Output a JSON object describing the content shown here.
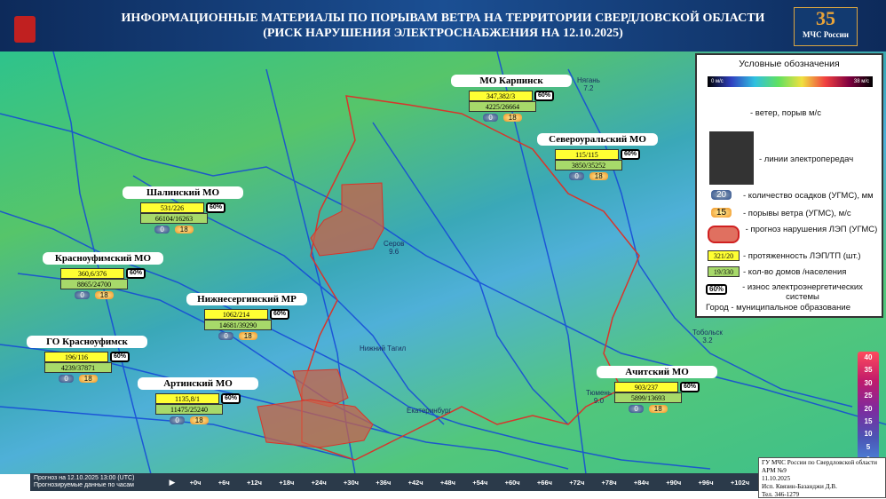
{
  "header": {
    "title": "ИНФОРМАЦИОННЫЕ МАТЕРИАЛЫ ПО ПОРЫВАМ ВЕТРА НА ТЕРРИТОРИИ СВЕРДЛОВСКОЙ ОБЛАСТИ",
    "subtitle": "(РИСК НАРУШЕНИЯ ЭЛЕКТРОСНАБЖЕНИЯ НА 12.10.2025)",
    "logo_number": "35",
    "logo_text": "МЧС России"
  },
  "municipalities": [
    {
      "name": "МО Карпинск",
      "lines": "347,382/3",
      "wear": "60%",
      "houses": "4225/26664",
      "precipitation": 0,
      "gust": 18
    },
    {
      "name": "Североуральский МО",
      "lines": "115/115",
      "wear": "60%",
      "houses": "3850/35252",
      "precipitation": 0,
      "gust": 18
    },
    {
      "name": "Шалинский МО",
      "lines": "531/226",
      "wear": "60%",
      "houses": "66104/16263",
      "precipitation": 0,
      "gust": 18
    },
    {
      "name": "Красноуфимский МО",
      "lines": "360,6/376",
      "wear": "60%",
      "houses": "8865/24700",
      "precipitation": 0,
      "gust": 18
    },
    {
      "name": "Нижнесергинский МР",
      "lines": "1062/214",
      "wear": "60%",
      "houses": "14681/39290",
      "precipitation": 0,
      "gust": 18
    },
    {
      "name": "ГО Красноуфимск",
      "lines": "196/116",
      "wear": "60%",
      "houses": "4239/37871",
      "precipitation": 0,
      "gust": 18
    },
    {
      "name": "Артинский МО",
      "lines": "1135,8/1",
      "wear": "60%",
      "houses": "11475/25240",
      "precipitation": 0,
      "gust": 18
    },
    {
      "name": "Ачитский МО",
      "lines": "903/237",
      "wear": "60%",
      "houses": "5899/13693",
      "precipitation": 0,
      "gust": 18
    }
  ],
  "cities": [
    {
      "name": "Нягань",
      "value": "7.2"
    },
    {
      "name": "Серов",
      "value": "9.6"
    },
    {
      "name": "Тобольск",
      "value": "3.2"
    },
    {
      "name": "Тюмень",
      "value": "9.0"
    },
    {
      "name": "Нижний Тагил"
    },
    {
      "name": "Екатеринбург"
    }
  ],
  "legend": {
    "title": "Условные обозначения",
    "scale_min": "0 м/с",
    "scale_max": "38 м/с",
    "wind": "- ветер, порыв м/с",
    "power_lines": "- линии электропередач",
    "precip_sample": 20,
    "precip": "- количество осадков (УГМС), мм",
    "gust_sample": 15,
    "gust": "- порывы ветра (УГМС), м/с",
    "forecast": "- прогноз нарушения ЛЭП (УГМС)",
    "lines_sample": "321/20",
    "lines": "- протяженность ЛЭП/ТП (шт.)",
    "houses_sample": "19/330",
    "houses": "- кол-во домов /населения",
    "wear_sample": "60%",
    "wear": "- износ электроэнергетических системы",
    "city": "Город - муниципальное образование"
  },
  "scale": [
    40,
    35,
    30,
    25,
    20,
    15,
    10,
    5,
    0
  ],
  "timeline": {
    "forecast": "Прогноз на 12.10.2025 13:00 (UTC)",
    "subtitle": "Прогнозируемые данные по часам",
    "steps": [
      "+0ч",
      "+6ч",
      "+12ч",
      "+18ч",
      "+24ч",
      "+30ч",
      "+36ч",
      "+42ч",
      "+48ч",
      "+54ч",
      "+60ч",
      "+66ч",
      "+72ч",
      "+78ч",
      "+84ч",
      "+90ч",
      "+96ч",
      "+102ч"
    ]
  },
  "footer": [
    "ГУ МЧС России по Свердловской области",
    "АРМ №9",
    "11.10.2025",
    "Исп. Квязин-Базанджи Д.В.",
    "Тел. 346-1279"
  ]
}
